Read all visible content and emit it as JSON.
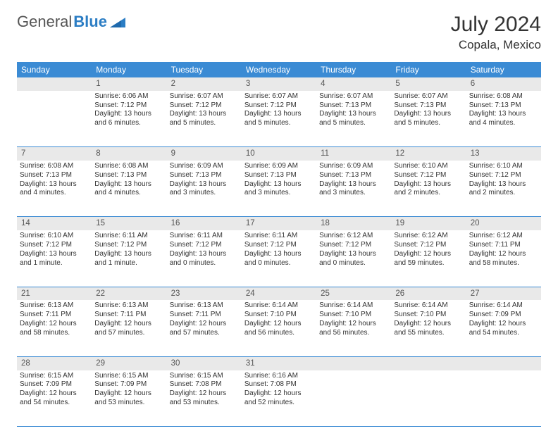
{
  "logo": {
    "part1": "General",
    "part2": "Blue"
  },
  "title": "July 2024",
  "location": "Copala, Mexico",
  "colors": {
    "header_bg": "#3b8bd4",
    "header_text": "#ffffff",
    "daynum_bg": "#e9e9e9",
    "border": "#3b8bd4",
    "text": "#333333",
    "logo_accent": "#2b7dc4"
  },
  "day_headers": [
    "Sunday",
    "Monday",
    "Tuesday",
    "Wednesday",
    "Thursday",
    "Friday",
    "Saturday"
  ],
  "weeks": [
    {
      "nums": [
        "",
        "1",
        "2",
        "3",
        "4",
        "5",
        "6"
      ],
      "cells": [
        {
          "sunrise": "",
          "sunset": "",
          "daylight": ""
        },
        {
          "sunrise": "Sunrise: 6:06 AM",
          "sunset": "Sunset: 7:12 PM",
          "daylight": "Daylight: 13 hours and 6 minutes."
        },
        {
          "sunrise": "Sunrise: 6:07 AM",
          "sunset": "Sunset: 7:12 PM",
          "daylight": "Daylight: 13 hours and 5 minutes."
        },
        {
          "sunrise": "Sunrise: 6:07 AM",
          "sunset": "Sunset: 7:12 PM",
          "daylight": "Daylight: 13 hours and 5 minutes."
        },
        {
          "sunrise": "Sunrise: 6:07 AM",
          "sunset": "Sunset: 7:13 PM",
          "daylight": "Daylight: 13 hours and 5 minutes."
        },
        {
          "sunrise": "Sunrise: 6:07 AM",
          "sunset": "Sunset: 7:13 PM",
          "daylight": "Daylight: 13 hours and 5 minutes."
        },
        {
          "sunrise": "Sunrise: 6:08 AM",
          "sunset": "Sunset: 7:13 PM",
          "daylight": "Daylight: 13 hours and 4 minutes."
        }
      ]
    },
    {
      "nums": [
        "7",
        "8",
        "9",
        "10",
        "11",
        "12",
        "13"
      ],
      "cells": [
        {
          "sunrise": "Sunrise: 6:08 AM",
          "sunset": "Sunset: 7:13 PM",
          "daylight": "Daylight: 13 hours and 4 minutes."
        },
        {
          "sunrise": "Sunrise: 6:08 AM",
          "sunset": "Sunset: 7:13 PM",
          "daylight": "Daylight: 13 hours and 4 minutes."
        },
        {
          "sunrise": "Sunrise: 6:09 AM",
          "sunset": "Sunset: 7:13 PM",
          "daylight": "Daylight: 13 hours and 3 minutes."
        },
        {
          "sunrise": "Sunrise: 6:09 AM",
          "sunset": "Sunset: 7:13 PM",
          "daylight": "Daylight: 13 hours and 3 minutes."
        },
        {
          "sunrise": "Sunrise: 6:09 AM",
          "sunset": "Sunset: 7:13 PM",
          "daylight": "Daylight: 13 hours and 3 minutes."
        },
        {
          "sunrise": "Sunrise: 6:10 AM",
          "sunset": "Sunset: 7:12 PM",
          "daylight": "Daylight: 13 hours and 2 minutes."
        },
        {
          "sunrise": "Sunrise: 6:10 AM",
          "sunset": "Sunset: 7:12 PM",
          "daylight": "Daylight: 13 hours and 2 minutes."
        }
      ]
    },
    {
      "nums": [
        "14",
        "15",
        "16",
        "17",
        "18",
        "19",
        "20"
      ],
      "cells": [
        {
          "sunrise": "Sunrise: 6:10 AM",
          "sunset": "Sunset: 7:12 PM",
          "daylight": "Daylight: 13 hours and 1 minute."
        },
        {
          "sunrise": "Sunrise: 6:11 AM",
          "sunset": "Sunset: 7:12 PM",
          "daylight": "Daylight: 13 hours and 1 minute."
        },
        {
          "sunrise": "Sunrise: 6:11 AM",
          "sunset": "Sunset: 7:12 PM",
          "daylight": "Daylight: 13 hours and 0 minutes."
        },
        {
          "sunrise": "Sunrise: 6:11 AM",
          "sunset": "Sunset: 7:12 PM",
          "daylight": "Daylight: 13 hours and 0 minutes."
        },
        {
          "sunrise": "Sunrise: 6:12 AM",
          "sunset": "Sunset: 7:12 PM",
          "daylight": "Daylight: 13 hours and 0 minutes."
        },
        {
          "sunrise": "Sunrise: 6:12 AM",
          "sunset": "Sunset: 7:12 PM",
          "daylight": "Daylight: 12 hours and 59 minutes."
        },
        {
          "sunrise": "Sunrise: 6:12 AM",
          "sunset": "Sunset: 7:11 PM",
          "daylight": "Daylight: 12 hours and 58 minutes."
        }
      ]
    },
    {
      "nums": [
        "21",
        "22",
        "23",
        "24",
        "25",
        "26",
        "27"
      ],
      "cells": [
        {
          "sunrise": "Sunrise: 6:13 AM",
          "sunset": "Sunset: 7:11 PM",
          "daylight": "Daylight: 12 hours and 58 minutes."
        },
        {
          "sunrise": "Sunrise: 6:13 AM",
          "sunset": "Sunset: 7:11 PM",
          "daylight": "Daylight: 12 hours and 57 minutes."
        },
        {
          "sunrise": "Sunrise: 6:13 AM",
          "sunset": "Sunset: 7:11 PM",
          "daylight": "Daylight: 12 hours and 57 minutes."
        },
        {
          "sunrise": "Sunrise: 6:14 AM",
          "sunset": "Sunset: 7:10 PM",
          "daylight": "Daylight: 12 hours and 56 minutes."
        },
        {
          "sunrise": "Sunrise: 6:14 AM",
          "sunset": "Sunset: 7:10 PM",
          "daylight": "Daylight: 12 hours and 56 minutes."
        },
        {
          "sunrise": "Sunrise: 6:14 AM",
          "sunset": "Sunset: 7:10 PM",
          "daylight": "Daylight: 12 hours and 55 minutes."
        },
        {
          "sunrise": "Sunrise: 6:14 AM",
          "sunset": "Sunset: 7:09 PM",
          "daylight": "Daylight: 12 hours and 54 minutes."
        }
      ]
    },
    {
      "nums": [
        "28",
        "29",
        "30",
        "31",
        "",
        "",
        ""
      ],
      "cells": [
        {
          "sunrise": "Sunrise: 6:15 AM",
          "sunset": "Sunset: 7:09 PM",
          "daylight": "Daylight: 12 hours and 54 minutes."
        },
        {
          "sunrise": "Sunrise: 6:15 AM",
          "sunset": "Sunset: 7:09 PM",
          "daylight": "Daylight: 12 hours and 53 minutes."
        },
        {
          "sunrise": "Sunrise: 6:15 AM",
          "sunset": "Sunset: 7:08 PM",
          "daylight": "Daylight: 12 hours and 53 minutes."
        },
        {
          "sunrise": "Sunrise: 6:16 AM",
          "sunset": "Sunset: 7:08 PM",
          "daylight": "Daylight: 12 hours and 52 minutes."
        },
        {
          "sunrise": "",
          "sunset": "",
          "daylight": ""
        },
        {
          "sunrise": "",
          "sunset": "",
          "daylight": ""
        },
        {
          "sunrise": "",
          "sunset": "",
          "daylight": ""
        }
      ]
    }
  ]
}
